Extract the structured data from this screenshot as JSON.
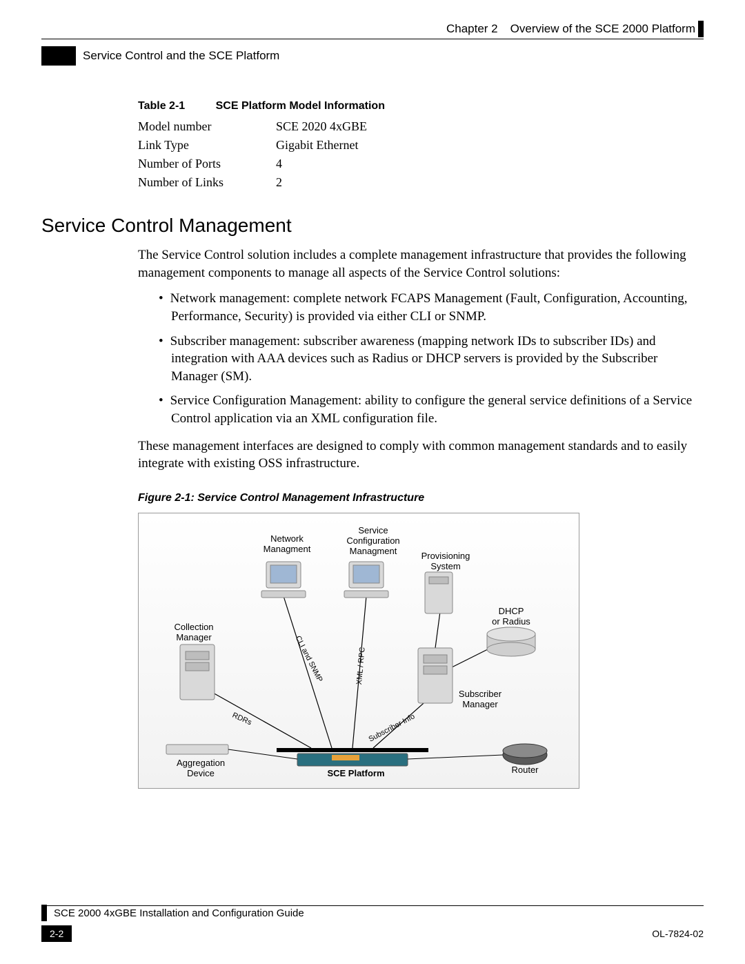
{
  "header": {
    "chapter": "Chapter 2",
    "title": "Overview of the SCE 2000 Platform",
    "subtitle": "Service Control and the SCE Platform"
  },
  "table": {
    "label": "Table 2-1",
    "caption": "SCE Platform Model Information",
    "rows": [
      {
        "label": "Model number",
        "value": "SCE 2020 4xGBE"
      },
      {
        "label": "Link Type",
        "value": "Gigabit Ethernet"
      },
      {
        "label": "Number of Ports",
        "value": "4"
      },
      {
        "label": "Number of Links",
        "value": "2"
      }
    ]
  },
  "section": {
    "title": "Service Control Management",
    "intro": "The Service Control solution includes a complete management infrastructure that provides the following management components to manage all aspects of the Service Control solutions:",
    "bullets": [
      "Network management: complete network FCAPS Management (Fault, Configuration, Accounting, Performance, Security) is provided via either CLI or SNMP.",
      "Subscriber management: subscriber awareness (mapping network IDs to subscriber IDs) and integration with AAA devices such as Radius or DHCP servers is provided by the Subscriber Manager (SM).",
      "Service Configuration Management: ability to configure the general service definitions of a Service Control application via an XML configuration file."
    ],
    "outro": "These management interfaces are designed to comply with common management standards and to easily integrate with existing OSS infrastructure."
  },
  "figure": {
    "caption": "Figure 2-1: Service Control Management Infrastructure",
    "labels": {
      "network_mgmt": "Network\nManagment",
      "service_cfg": "Service\nConfiguration\nManagment",
      "provisioning": "Provisioning\nSystem",
      "collection": "Collection\nManager",
      "dhcp": "DHCP\nor Radius",
      "subscriber": "Subscriber\nManager",
      "aggregation": "Aggregation\nDevice",
      "sce": "SCE Platform",
      "router": "Router",
      "rdrs": "RDRs",
      "cli": "CLI and SNMP",
      "xml": "XML / RPC",
      "subinfo": "Subscriber Info"
    },
    "colors": {
      "bg_top": "#ffffff",
      "bg_bottom": "#f2f2f2",
      "device_fill": "#d9d9d9",
      "device_stroke": "#888888",
      "screen_fill": "#9fb7d4",
      "line": "#000000",
      "sce_fill": "#2a6f7f",
      "sce_accent": "#e8a23a",
      "router_fill": "#5a5a5a",
      "cylinder_fill": "#cfcfcf"
    }
  },
  "footer": {
    "guide": "SCE 2000 4xGBE Installation and Configuration Guide",
    "page": "2-2",
    "docnum": "OL-7824-02"
  }
}
